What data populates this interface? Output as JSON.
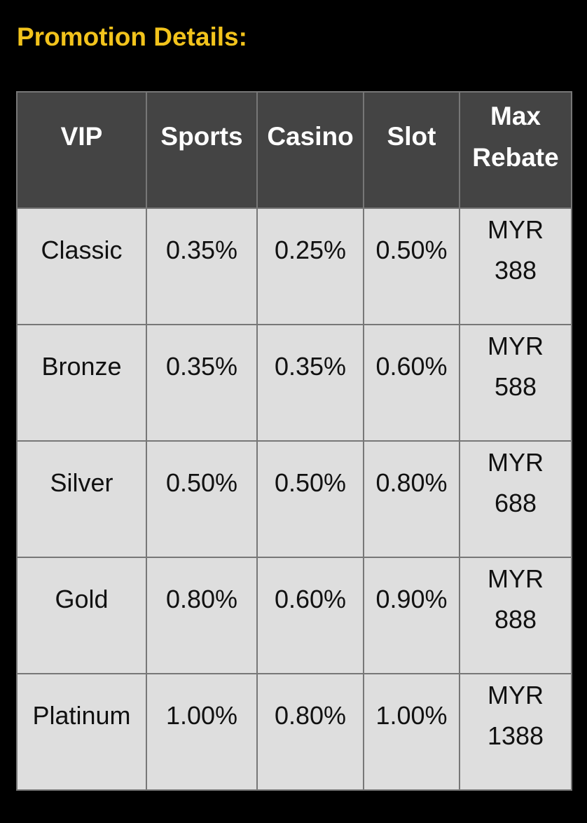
{
  "title": "Promotion Details:",
  "colors": {
    "title": "#f2c31c",
    "header_bg": "#444444",
    "cell_bg": "#dedede",
    "border": "#777777"
  },
  "table": {
    "headers": [
      "VIP",
      "Sports",
      "Casino",
      "Slot",
      "Max Rebate"
    ],
    "rows": [
      [
        "Classic",
        "0.35%",
        "0.25%",
        "0.50%",
        "MYR 388"
      ],
      [
        "Bronze",
        "0.35%",
        "0.35%",
        "0.60%",
        "MYR 588"
      ],
      [
        "Silver",
        "0.50%",
        "0.50%",
        "0.80%",
        "MYR 688"
      ],
      [
        "Gold",
        "0.80%",
        "0.60%",
        "0.90%",
        "MYR 888"
      ],
      [
        "Platinum",
        "1.00%",
        "0.80%",
        "1.00%",
        "MYR 1388"
      ]
    ]
  }
}
